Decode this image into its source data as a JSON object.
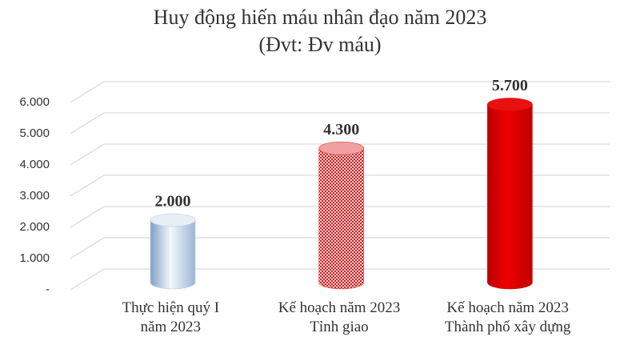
{
  "chart_data": {
    "type": "cylinder-bar",
    "title": "Huy động hiến máu nhân đạo năm 2023",
    "subtitle": "(Đvt: Đv máu)",
    "categories": [
      "Thực hiện quý I\nnăm 2023",
      "Kế hoạch năm 2023\nTỉnh giao",
      "Kế hoạch năm 2023\nThành phố xây dựng"
    ],
    "values": [
      2000,
      4300,
      5700
    ],
    "value_labels": [
      "2.000",
      "4.300",
      "5.700"
    ],
    "colors": [
      "#b8cfe6",
      "#e04848",
      "#e00000"
    ],
    "ylim": [
      0,
      6000
    ],
    "yticks": [
      {
        "value": 0,
        "label": "-"
      },
      {
        "value": 1000,
        "label": "1.000"
      },
      {
        "value": 2000,
        "label": "2.000"
      },
      {
        "value": 3000,
        "label": "3.000"
      },
      {
        "value": 4000,
        "label": "4.000"
      },
      {
        "value": 5000,
        "label": "5.000"
      },
      {
        "value": 6000,
        "label": "6.000"
      }
    ],
    "grid": true
  }
}
